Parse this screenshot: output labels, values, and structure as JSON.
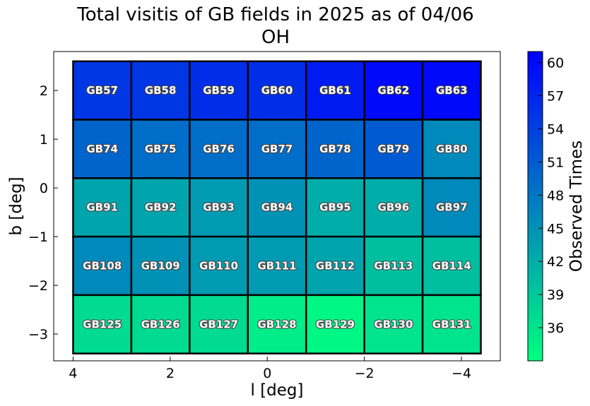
{
  "chart_data": {
    "type": "heatmap",
    "title": "Total visitis of GB fields in 2025 as of 04/06",
    "subtitle": "OH",
    "xlabel": "l [deg]",
    "ylabel": "b [deg]",
    "colorbar_label": "Observed Times",
    "xlim": [
      4.4,
      -4.8
    ],
    "ylim": [
      -3.55,
      2.8
    ],
    "x_ticks": [
      4,
      2,
      0,
      -2,
      -4
    ],
    "y_ticks": [
      2,
      1,
      0,
      -1,
      -2,
      -3
    ],
    "colorbar_ticks": [
      36,
      39,
      42,
      45,
      48,
      51,
      54,
      57,
      60
    ],
    "colorbar_range": [
      33,
      61
    ],
    "colormap": [
      "#00ff80",
      "#0000ff"
    ],
    "grid": false,
    "cells_x_edges": [
      4.0,
      2.8,
      1.6,
      0.4,
      -0.8,
      -2.0,
      -3.2,
      -4.4
    ],
    "cells_y_edges": [
      2.6,
      1.4,
      0.2,
      -1.0,
      -2.2,
      -3.4
    ],
    "rows": [
      {
        "labels": [
          "GB57",
          "GB58",
          "GB59",
          "GB60",
          "GB61",
          "GB62",
          "GB63"
        ],
        "values": [
          55,
          55,
          56,
          56,
          58,
          60,
          60
        ]
      },
      {
        "labels": [
          "GB74",
          "GB75",
          "GB76",
          "GB77",
          "GB78",
          "GB79",
          "GB80"
        ],
        "values": [
          50,
          49,
          49,
          49,
          50,
          51,
          46
        ]
      },
      {
        "labels": [
          "GB91",
          "GB92",
          "GB93",
          "GB94",
          "GB95",
          "GB96",
          "GB97"
        ],
        "values": [
          43,
          43,
          44,
          45,
          42,
          42,
          46
        ]
      },
      {
        "labels": [
          "GB108",
          "GB109",
          "GB110",
          "GB111",
          "GB112",
          "GB113",
          "GB114"
        ],
        "values": [
          46,
          45,
          44,
          44,
          43,
          40,
          40
        ]
      },
      {
        "labels": [
          "GB125",
          "GB126",
          "GB127",
          "GB128",
          "GB129",
          "GB130",
          "GB131"
        ],
        "values": [
          37,
          37,
          37,
          35,
          34,
          36,
          36
        ]
      }
    ]
  }
}
